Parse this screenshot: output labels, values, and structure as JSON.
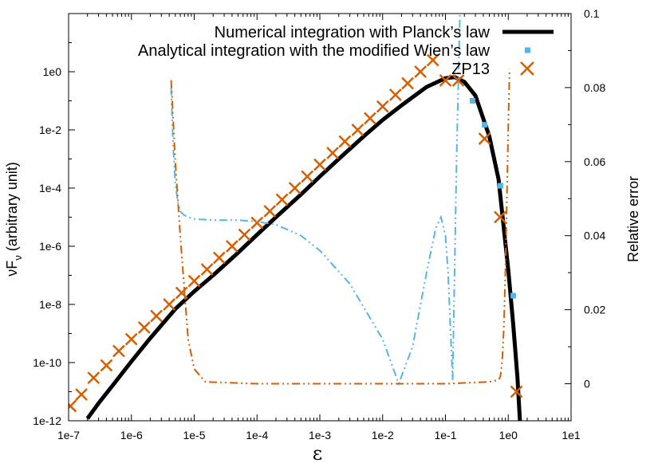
{
  "chart_data": {
    "type": "line",
    "xlabel": "ε",
    "ylabel": "νF",
    "ylabel_subscript": "ν",
    "ylabel_suffix": " (arbitrary unit)",
    "y2label": "Relative error",
    "xscale": "log",
    "yscale": "log",
    "xlim": [
      1e-07,
      10
    ],
    "ylim": [
      1e-12,
      100
    ],
    "y2lim": [
      -0.01,
      0.1
    ],
    "grid": false,
    "legend_position": "top-right",
    "x_ticks": [
      {
        "value": 1e-07,
        "label": "1e-7"
      },
      {
        "value": 1e-06,
        "label": "1e-6"
      },
      {
        "value": 1e-05,
        "label": "1e-5"
      },
      {
        "value": 0.0001,
        "label": "1e-4"
      },
      {
        "value": 0.001,
        "label": "1e-3"
      },
      {
        "value": 0.01,
        "label": "1e-2"
      },
      {
        "value": 0.1,
        "label": "1e-1"
      },
      {
        "value": 1,
        "label": "1e0"
      },
      {
        "value": 10,
        "label": "1e1"
      }
    ],
    "y_ticks": [
      {
        "value": 1e-12,
        "label": "1e-12"
      },
      {
        "value": 1e-10,
        "label": "1e-10"
      },
      {
        "value": 1e-08,
        "label": "1e-8"
      },
      {
        "value": 1e-06,
        "label": "1e-6"
      },
      {
        "value": 0.0001,
        "label": "1e-4"
      },
      {
        "value": 0.01,
        "label": "1e-2"
      },
      {
        "value": 1,
        "label": "1e0"
      }
    ],
    "y2_ticks": [
      {
        "value": 0,
        "label": "0"
      },
      {
        "value": 0.02,
        "label": "0.02"
      },
      {
        "value": 0.04,
        "label": "0.04"
      },
      {
        "value": 0.06,
        "label": "0.06"
      },
      {
        "value": 0.08,
        "label": "0.08"
      },
      {
        "value": 0.1,
        "label": "0.1"
      }
    ],
    "series": [
      {
        "name": "Numerical integration with Planck’s law",
        "kind": "line",
        "axis": "left",
        "color": "#000000",
        "x": [
          2e-07,
          3e-07,
          5e-07,
          1e-06,
          2e-06,
          5e-06,
          1e-05,
          2e-05,
          5e-05,
          0.0001,
          0.0002,
          0.0005,
          0.001,
          0.002,
          0.005,
          0.01,
          0.02,
          0.05,
          0.1,
          0.14,
          0.2,
          0.3,
          0.5,
          0.7,
          1.0,
          1.2,
          1.4,
          1.6
        ],
        "y": [
          1.2e-12,
          4e-12,
          1.6e-11,
          1.1e-10,
          7e-10,
          7e-09,
          2.8e-08,
          1e-07,
          6e-07,
          2.5e-06,
          1e-05,
          6e-05,
          0.00025,
          0.001,
          0.006,
          0.022,
          0.07,
          0.3,
          0.6,
          0.65,
          0.45,
          0.15,
          0.006,
          0.0002,
          1.5e-07,
          2e-09,
          3e-11,
          2e-13
        ]
      },
      {
        "name": "Analytical integration with the modified Wien’s law",
        "kind": "points",
        "marker": "square",
        "axis": "left",
        "color": "#56b4e9",
        "x": [
          0.27,
          0.42,
          0.75,
          1.2
        ],
        "y": [
          0.1,
          0.015,
          0.00012,
          2e-08
        ]
      },
      {
        "name": "ZP13",
        "kind": "points",
        "marker": "x",
        "axis": "left",
        "color": "#d55e00",
        "x": [
          1.07e-07,
          1.6e-07,
          2.5e-07,
          4e-07,
          6.3e-07,
          1e-06,
          1.6e-06,
          2.5e-06,
          4e-06,
          6.3e-06,
          1e-05,
          1.6e-05,
          2.5e-05,
          4e-05,
          6.3e-05,
          0.0001,
          0.00016,
          0.00025,
          0.0004,
          0.00063,
          0.001,
          0.0016,
          0.0025,
          0.004,
          0.0063,
          0.01,
          0.016,
          0.025,
          0.04,
          0.063,
          0.1,
          0.16,
          0.42,
          0.74,
          1.35
        ],
        "y": [
          3.2e-12,
          8e-12,
          3e-11,
          8e-11,
          2.5e-10,
          6.4e-10,
          1.6e-09,
          4e-09,
          1e-08,
          2.5e-08,
          6.4e-08,
          1.6e-07,
          4e-07,
          1e-06,
          2.5e-06,
          6.4e-06,
          1.6e-05,
          4e-05,
          0.0001,
          0.00025,
          0.00064,
          0.0016,
          0.004,
          0.01,
          0.025,
          0.064,
          0.16,
          0.4,
          1.0,
          2.5,
          0.5,
          0.5,
          0.005,
          1e-05,
          1e-11
        ]
      },
      {
        "name": "",
        "kind": "dashdot",
        "axis": "right",
        "color": "#56b4e9",
        "x": [
          4.3e-06,
          4.6e-06,
          5e-06,
          5.5e-06,
          6e-06,
          7e-06,
          8e-06,
          1e-05,
          2e-05,
          5e-05,
          0.0001,
          0.0002,
          0.0005,
          0.001,
          0.003,
          0.01,
          0.018,
          0.03,
          0.05,
          0.07,
          0.085,
          0.1,
          0.11,
          0.12,
          0.13,
          0.15,
          0.17
        ],
        "y": [
          0.08,
          0.065,
          0.054,
          0.049,
          0.0465,
          0.0455,
          0.045,
          0.0445,
          0.0442,
          0.0442,
          0.0438,
          0.043,
          0.04,
          0.036,
          0.027,
          0.012,
          0.0,
          0.01,
          0.03,
          0.042,
          0.045,
          0.04,
          0.03,
          0.015,
          0.001,
          0.06,
          0.1
        ]
      },
      {
        "name": "",
        "kind": "dashdot",
        "axis": "right",
        "color": "#d55e00",
        "x": [
          4.3e-06,
          5e-06,
          6e-06,
          7e-06,
          8e-06,
          1e-05,
          1.5e-05,
          0.0001,
          0.001,
          0.01,
          0.1,
          0.5,
          0.7,
          0.75,
          0.8,
          0.85,
          0.9,
          0.95,
          1.0,
          1.05
        ],
        "y": [
          0.082,
          0.06,
          0.04,
          0.025,
          0.012,
          0.004,
          0.0005,
          0.0,
          0.0,
          0.0,
          0.0,
          0.0005,
          0.001,
          0.002,
          0.006,
          0.015,
          0.03,
          0.05,
          0.07,
          0.085
        ]
      }
    ]
  }
}
